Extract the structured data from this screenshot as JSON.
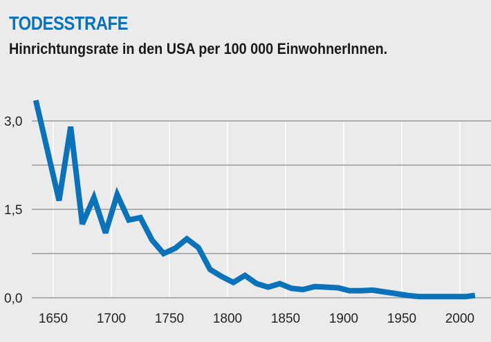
{
  "title": "TODESSTRAFE",
  "subtitle": "Hinrichtungsrate in den USA per 100 000 EinwohnerInnen.",
  "colors": {
    "line": "#0a72b8",
    "background": "#ebebeb",
    "title": "#0a72b8"
  },
  "chart_data": {
    "type": "line",
    "title": "TODESSTRAFE",
    "subtitle": "Hinrichtungsrate in den USA per 100 000 EinwohnerInnen.",
    "xlabel": "",
    "ylabel": "",
    "xlim": [
      1630,
      2020
    ],
    "ylim": [
      0,
      3.4
    ],
    "grid": true,
    "x_ticks": [
      1650,
      1700,
      1750,
      1800,
      1850,
      1900,
      1950,
      2000
    ],
    "x_tick_labels": [
      "1650",
      "1700",
      "1750",
      "1800",
      "1850",
      "1900",
      "1950",
      "2000"
    ],
    "y_ticks": [
      0,
      0.75,
      1.5,
      2.25,
      3.0
    ],
    "y_tick_labels": [
      "0,0",
      "",
      "1,5",
      "",
      "3,0"
    ],
    "x": [
      1635,
      1655,
      1665,
      1675,
      1685,
      1695,
      1705,
      1715,
      1725,
      1735,
      1745,
      1755,
      1765,
      1775,
      1785,
      1795,
      1805,
      1815,
      1825,
      1835,
      1845,
      1855,
      1865,
      1875,
      1885,
      1895,
      1905,
      1915,
      1925,
      1935,
      1945,
      1955,
      1965,
      1975,
      1985,
      1995,
      2005,
      2013
    ],
    "values": [
      3.35,
      1.65,
      2.9,
      1.25,
      1.7,
      1.1,
      1.75,
      1.32,
      1.36,
      0.98,
      0.75,
      0.84,
      1.0,
      0.85,
      0.48,
      0.36,
      0.26,
      0.38,
      0.24,
      0.18,
      0.24,
      0.16,
      0.14,
      0.19,
      0.18,
      0.17,
      0.12,
      0.12,
      0.13,
      0.1,
      0.07,
      0.04,
      0.02,
      0.02,
      0.02,
      0.02,
      0.02,
      0.04
    ]
  }
}
